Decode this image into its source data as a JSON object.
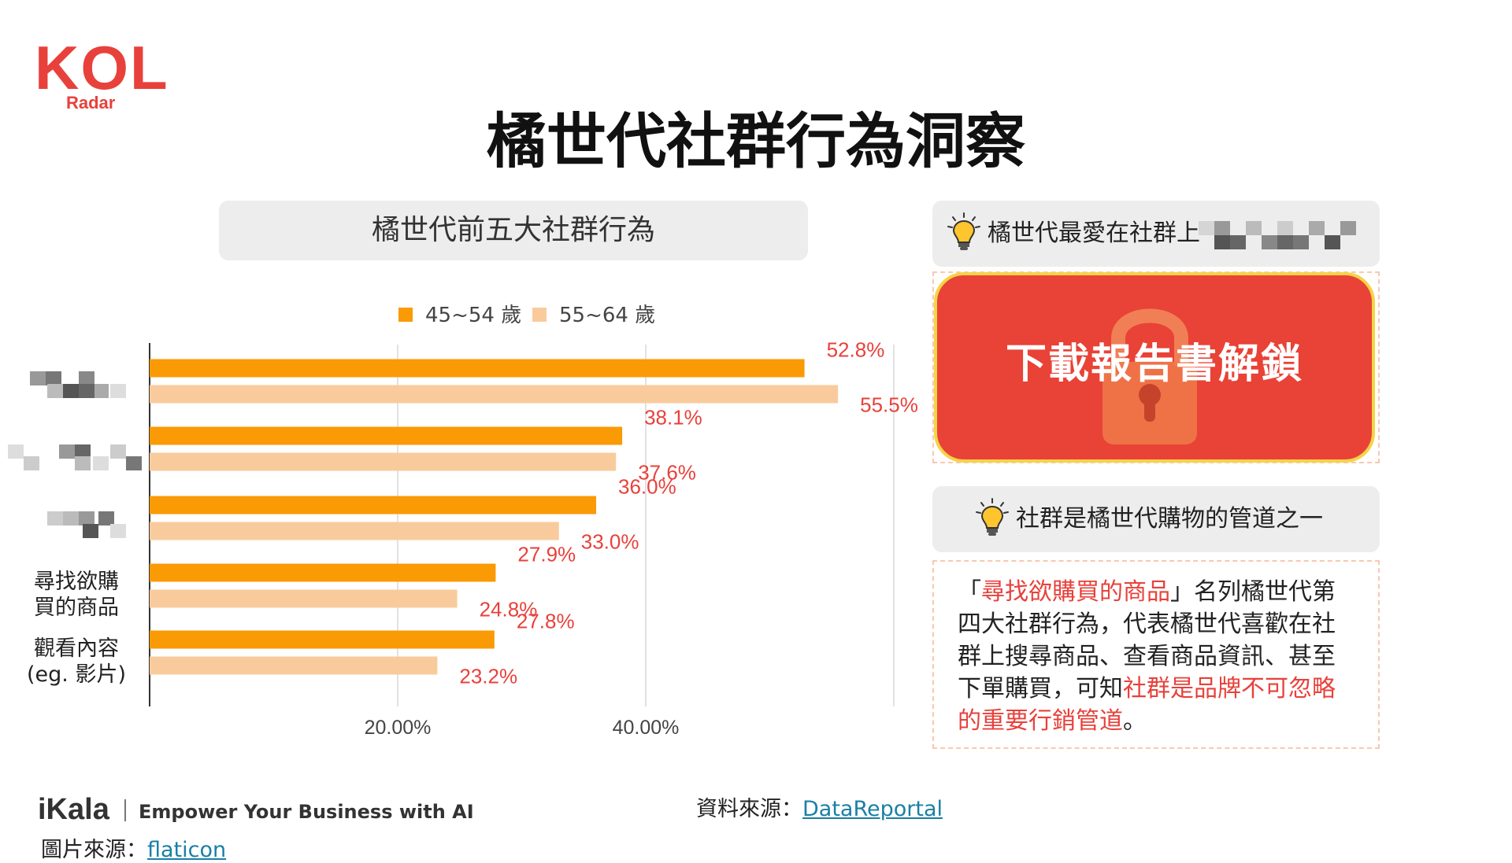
{
  "logo": {
    "main": "KOL",
    "sub": "Radar"
  },
  "title": "橘世代社群行為洞察",
  "chart_header": "橘世代前五大社群行為",
  "chart_data": {
    "type": "bar",
    "orientation": "horizontal",
    "categories": [
      "",
      "",
      "",
      "尋找欲購\n買的商品",
      "觀看內容\n(eg. 影片)"
    ],
    "series": [
      {
        "name": "45~54 歲",
        "values": [
          52.8,
          38.1,
          36.0,
          27.9,
          27.8
        ],
        "labels": [
          "52.8%",
          "38.1%",
          "36.0%",
          "27.9%",
          "27.8%"
        ]
      },
      {
        "name": "55~64 歲",
        "values": [
          55.5,
          37.6,
          33.0,
          24.8,
          23.2
        ],
        "labels": [
          "55.5%",
          "37.6%",
          "33.0%",
          "24.8%",
          "23.2%"
        ]
      }
    ],
    "xlim": [
      0,
      60
    ],
    "ticks": [
      20,
      40
    ],
    "tick_labels": [
      "20.00%",
      "40.00%"
    ],
    "gridlines": [
      20,
      40,
      60
    ],
    "legend": "top",
    "grid": true
  },
  "colors": {
    "series1": "#fa9a04",
    "series2": "#f9cb9c",
    "label": "#e8413b",
    "accent": "#e94236"
  },
  "panel1_text": "橘世代最愛在社群上",
  "lock_label": "下載報告書解鎖",
  "panel2_text": "社群是橘世代購物的管道之一",
  "note": {
    "p1": "「",
    "h1": "尋找欲購買的商品",
    "p2": "」名列橘世代第四大社群行為，代表橘世代喜歡在社群上搜尋商品、查看商品資訊、甚至下單購買，可知",
    "h2": "社群是品牌不可忽略的重要行銷管道",
    "p3": "。"
  },
  "footer": {
    "brand": "iKala",
    "tagline": "Empower Your Business with AI",
    "source_label": "資料來源：",
    "source_link": "DataReportal",
    "image_label": "圖片來源：",
    "image_link": "flaticon"
  },
  "icons": [
    "lightbulb-icon",
    "padlock-icon"
  ]
}
